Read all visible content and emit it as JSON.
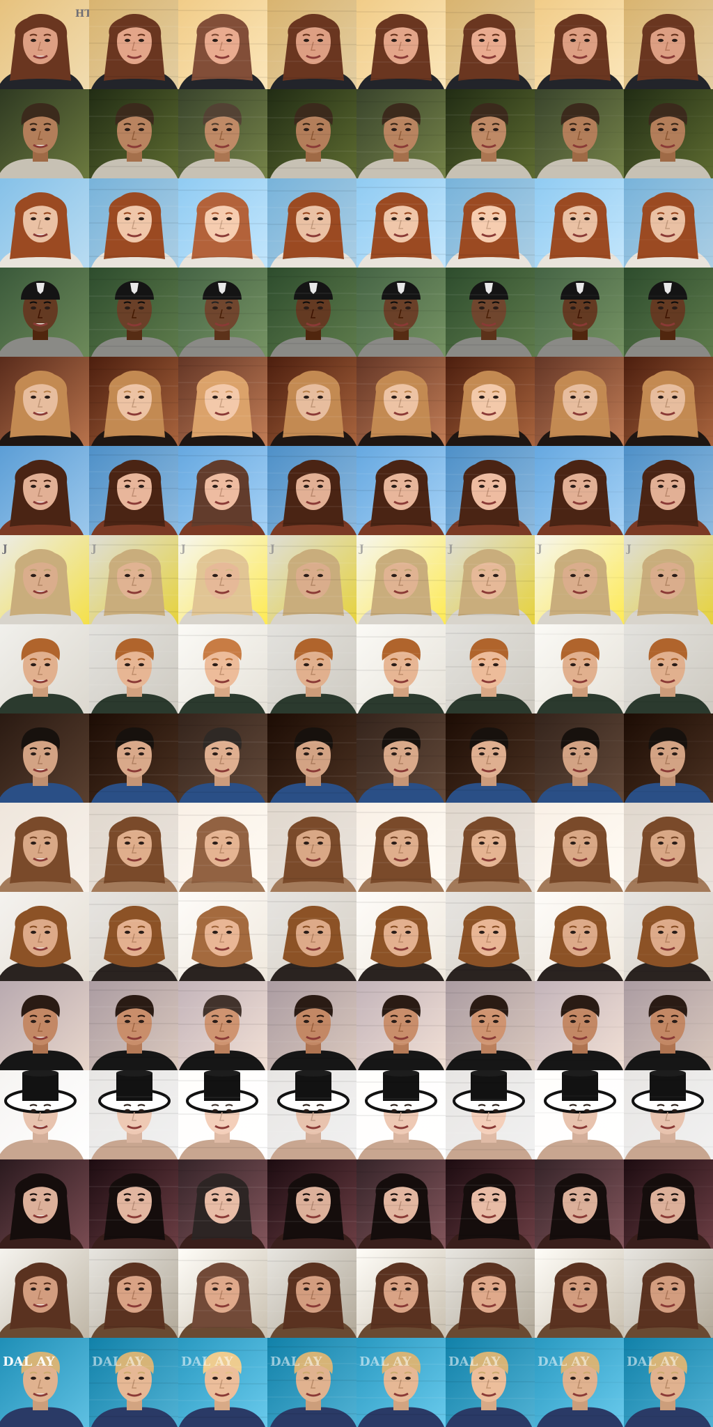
{
  "grid": {
    "rows": 16,
    "columns": 8
  },
  "photo_text": {
    "row_1": "HT",
    "row_7": "J",
    "row_16": "DAL AY"
  },
  "rows": [
    {
      "bg": "#e7c27e",
      "bg2": "#f1dcb0",
      "hair": "#6a3620",
      "skin": "#e3a589",
      "cloth": "#22242a",
      "style": "long"
    },
    {
      "bg": "#2f3a22",
      "bg2": "#6c7a3f",
      "hair": "#3b2a1c",
      "skin": "#b98460",
      "cloth": "#c7c1b4",
      "style": "short"
    },
    {
      "bg": "#86c1e8",
      "bg2": "#b9dcf2",
      "hair": "#9b4a22",
      "skin": "#f0c7aa",
      "cloth": "#e9e4dc",
      "style": "long"
    },
    {
      "bg": "#3b5a3b",
      "bg2": "#6d8a5a",
      "hair": "#151515",
      "skin": "#6a4028",
      "cloth": "#8a8a86",
      "style": "beanie"
    },
    {
      "bg": "#5a2c1c",
      "bg2": "#b8734c",
      "hair": "#c38a52",
      "skin": "#edc3a4",
      "cloth": "#1f1612",
      "style": "long"
    },
    {
      "bg": "#5c9ed6",
      "bg2": "#9cc8ec",
      "hair": "#4a2414",
      "skin": "#e8b69b",
      "cloth": "#7b3a25",
      "style": "long"
    },
    {
      "bg": "#ecece6",
      "bg2": "#f4e04a",
      "hair": "#c9ad7c",
      "skin": "#e0b392",
      "cloth": "#d8d4cc",
      "style": "long"
    },
    {
      "bg": "#f1f0ec",
      "bg2": "#dcd8cf",
      "hair": "#b0642c",
      "skin": "#e7b694",
      "cloth": "#2b3a2e",
      "style": "short"
    },
    {
      "bg": "#2a1a12",
      "bg2": "#5a4030",
      "hair": "#17110d",
      "skin": "#d9a98a",
      "cloth": "#2a4f86",
      "style": "short"
    },
    {
      "bg": "#efe6dc",
      "bg2": "#f7f1ea",
      "hair": "#7a4a2a",
      "skin": "#dfae8c",
      "cloth": "#a37a5a",
      "style": "long"
    },
    {
      "bg": "#f4f2ef",
      "bg2": "#e6dfd4",
      "hair": "#8c5226",
      "skin": "#e3b08f",
      "cloth": "#2a2320",
      "style": "curly"
    },
    {
      "bg": "#b9aab0",
      "bg2": "#e8d6cb",
      "hair": "#2a1b14",
      "skin": "#c98e6b",
      "cloth": "#161616",
      "style": "short"
    },
    {
      "bg": "#f6f4f2",
      "bg2": "#ffffff",
      "hair": "#2a1d16",
      "skin": "#eec9b4",
      "cloth": "#c8a690",
      "style": "tophat"
    },
    {
      "bg": "#2b1a1f",
      "bg2": "#7a4c52",
      "hair": "#150d0c",
      "skin": "#e2b6a0",
      "cloth": "#3a1f1c",
      "style": "long"
    },
    {
      "bg": "#f5f3ee",
      "bg2": "#bfb6a6",
      "hair": "#5a3220",
      "skin": "#d9a385",
      "cloth": "#6a4a32",
      "style": "long"
    },
    {
      "bg": "#1f8fb7",
      "bg2": "#5fc0e2",
      "hair": "#d6b477",
      "skin": "#e6b895",
      "cloth": "#2a3a66",
      "style": "short"
    }
  ]
}
